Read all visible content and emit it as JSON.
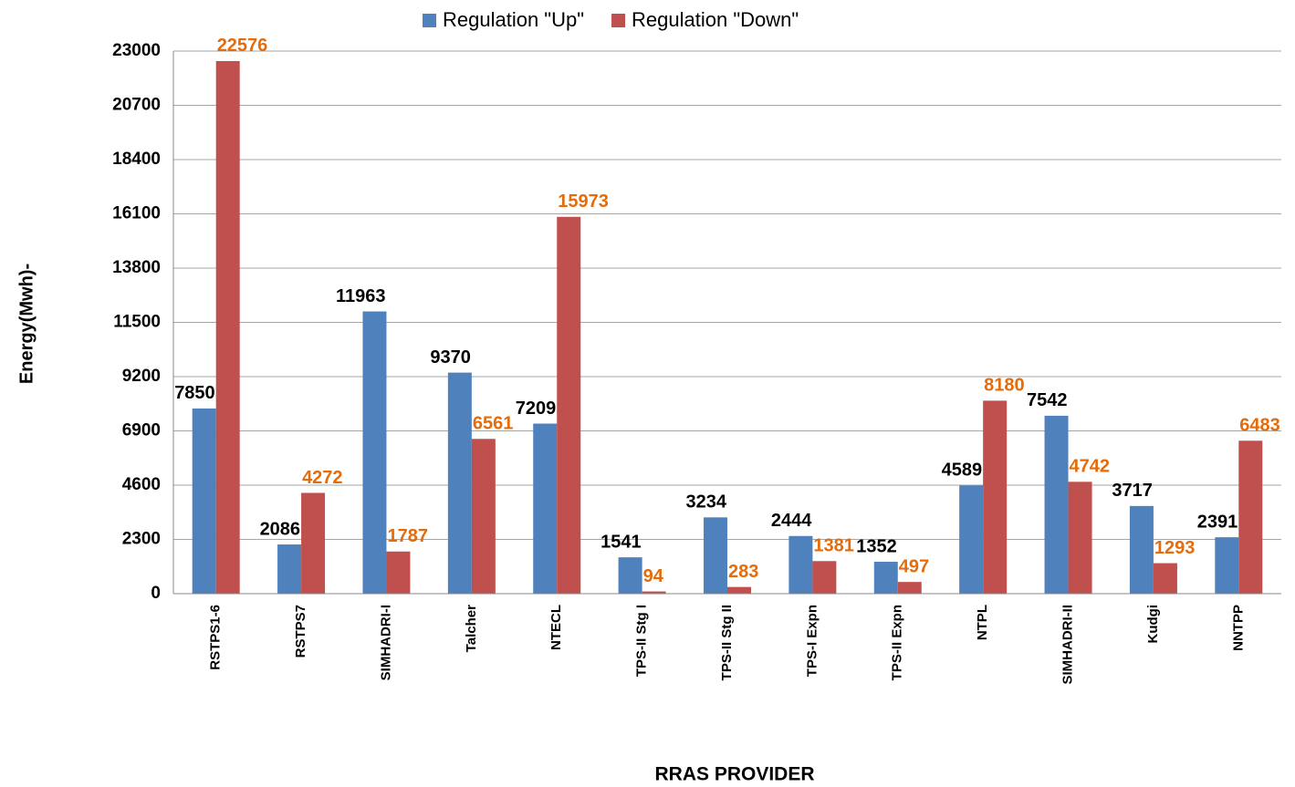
{
  "chart_data": {
    "type": "bar",
    "x_label": "RRAS PROVIDER",
    "y_label": "Energy(Mwh)-",
    "categories": [
      "RSTPS1-6",
      "RSTPS7",
      "SIMHADRI-I",
      "Talcher",
      "NTECL",
      "TPS-II Stg I",
      "TPS-II Stg II",
      "TPS-I Expn",
      "TPS-II Expn",
      "NTPL",
      "SIMHADRI-II",
      "Kudgi",
      "NNTPP"
    ],
    "series": [
      {
        "name": "Regulation \"Up\"",
        "color": "#4f81bd",
        "label_color": "#000000",
        "values": [
          7850,
          2086,
          11963,
          9370,
          7209,
          1541,
          3234,
          2444,
          1352,
          4589,
          7542,
          3717,
          2391
        ]
      },
      {
        "name": "Regulation \"Down\"",
        "color": "#c0504d",
        "label_color": "#e46c0a",
        "values": [
          22576,
          4272,
          1787,
          6561,
          15973,
          94,
          283,
          1381,
          497,
          8180,
          4742,
          1293,
          6483
        ]
      }
    ],
    "ylim": [
      0,
      23000
    ],
    "yticks": [
      0,
      2300,
      4600,
      6900,
      9200,
      11500,
      13800,
      16100,
      18400,
      20700,
      23000
    ],
    "grid": true,
    "legend": "top"
  }
}
